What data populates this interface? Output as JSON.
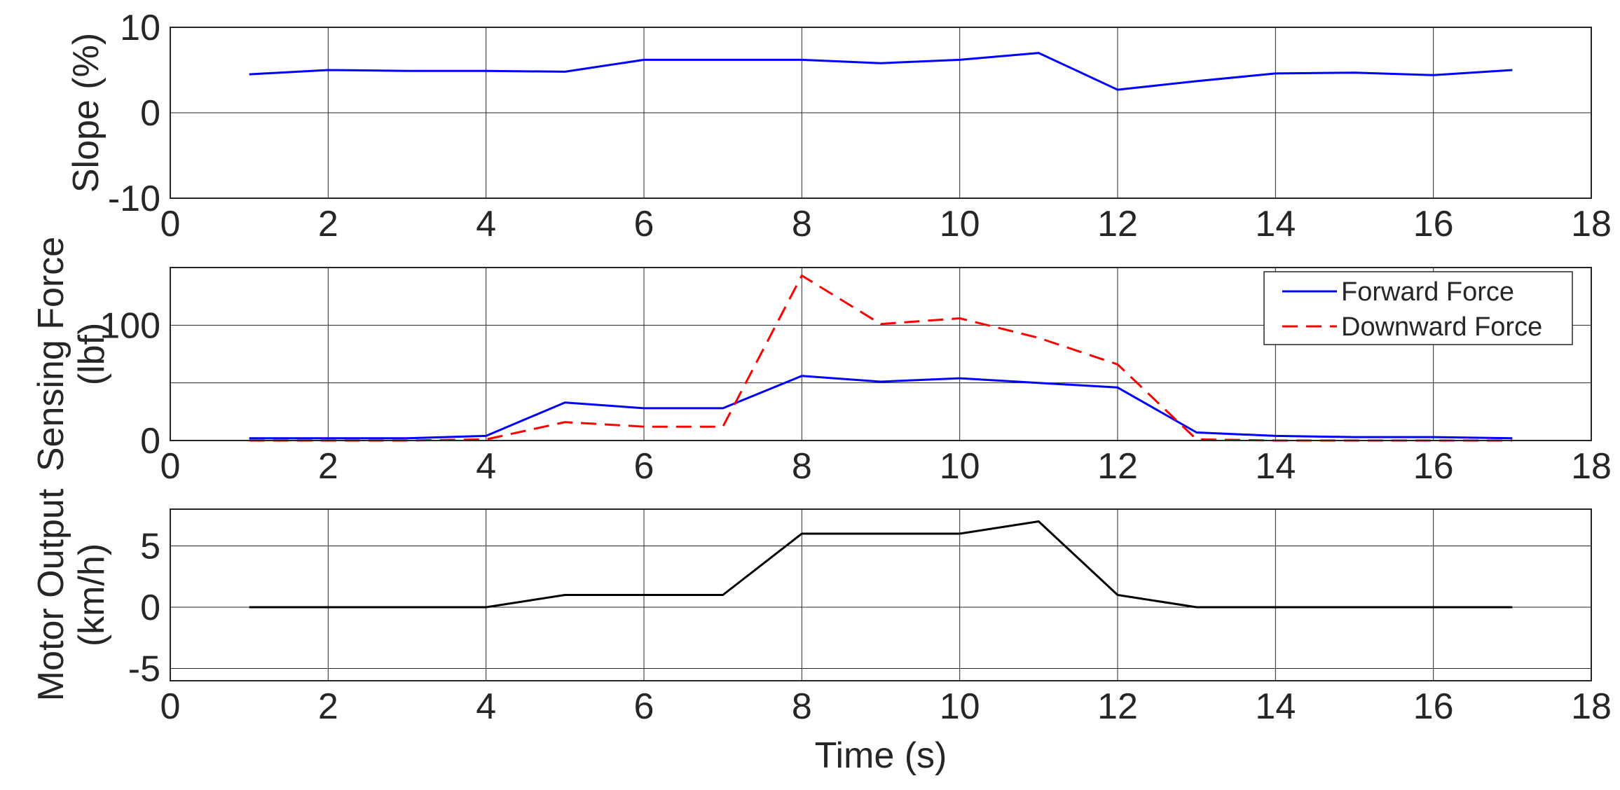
{
  "chart_data": [
    {
      "type": "line",
      "ylabel": [
        "Slope (%)"
      ],
      "xlabel": "",
      "xlim": [
        0,
        18
      ],
      "ylim": [
        -10,
        10
      ],
      "xticks": [
        "0",
        "2",
        "4",
        "6",
        "8",
        "10",
        "12",
        "14",
        "16",
        "18"
      ],
      "yticks": [
        "-10",
        "0",
        "10"
      ],
      "grid": true,
      "legend": null,
      "series": [
        {
          "color": "#0000ff",
          "dash": "solid",
          "x": [
            1,
            2,
            3,
            4,
            5,
            6,
            7,
            8,
            9,
            10,
            11,
            12,
            13,
            14,
            15,
            16,
            17
          ],
          "y": [
            4.5,
            5,
            4.9,
            4.9,
            4.8,
            6.2,
            6.2,
            6.2,
            5.8,
            6.2,
            7,
            2.7,
            3.7,
            4.6,
            4.7,
            4.4,
            5
          ]
        }
      ]
    },
    {
      "type": "line",
      "ylabel": [
        "Sensing Force",
        "(lbf)"
      ],
      "xlabel": "",
      "xlim": [
        0,
        18
      ],
      "ylim": [
        0,
        150
      ],
      "ygrid_values": [
        0,
        50,
        100,
        150
      ],
      "xticks": [
        "0",
        "2",
        "4",
        "6",
        "8",
        "10",
        "12",
        "14",
        "16",
        "18"
      ],
      "yticks": [
        "0",
        "100"
      ],
      "grid": true,
      "legend": "top-right",
      "series": [
        {
          "name": "Forward Force",
          "color": "#0000ff",
          "dash": "solid",
          "x": [
            1,
            2,
            3,
            4,
            5,
            6,
            7,
            8,
            9,
            10,
            11,
            12,
            13,
            14,
            15,
            16,
            17
          ],
          "y": [
            2,
            2,
            2,
            4,
            33,
            28,
            28,
            56,
            51,
            54,
            50,
            46,
            7,
            4,
            3,
            3,
            2
          ]
        },
        {
          "name": "Downward Force",
          "color": "#ff0000",
          "dash": "dashed",
          "x": [
            1,
            2,
            3,
            4,
            5,
            6,
            7,
            8,
            9,
            10,
            11,
            12,
            13,
            14,
            15,
            16,
            17
          ],
          "y": [
            0,
            0,
            0,
            1,
            16,
            12,
            12,
            143,
            101,
            106,
            89,
            66,
            1,
            0,
            0,
            0,
            0
          ]
        }
      ]
    },
    {
      "type": "line",
      "ylabel": [
        "Motor Output",
        "(km/h)"
      ],
      "xlabel": "Time (s)",
      "xlim": [
        0,
        18
      ],
      "ylim": [
        -6,
        8
      ],
      "ygrid_values": [
        -5,
        0,
        5
      ],
      "xticks": [
        "0",
        "2",
        "4",
        "6",
        "8",
        "10",
        "12",
        "14",
        "16",
        "18"
      ],
      "yticks": [
        "-5",
        "0",
        "5"
      ],
      "grid": true,
      "legend": null,
      "series": [
        {
          "color": "#000000",
          "dash": "solid",
          "x": [
            1,
            2,
            3,
            4,
            5,
            6,
            7,
            8,
            9,
            10,
            11,
            12,
            13,
            14,
            15,
            16,
            17
          ],
          "y": [
            0,
            0,
            0,
            0,
            1,
            1,
            1,
            6,
            6,
            6,
            7,
            1,
            0,
            0,
            0,
            0,
            0
          ]
        }
      ]
    }
  ]
}
